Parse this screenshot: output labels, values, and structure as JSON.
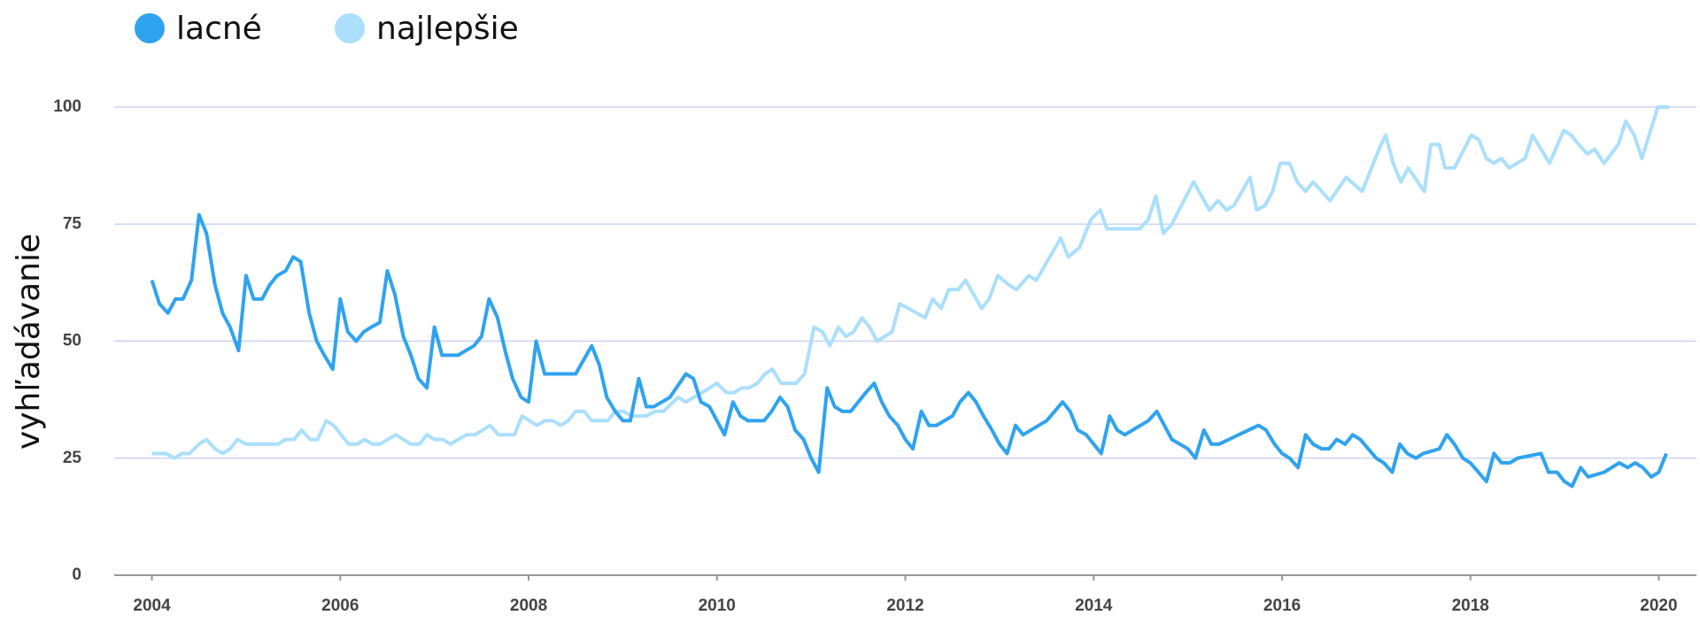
{
  "chart_data": {
    "type": "line",
    "y_label": "vyhľadávanie",
    "xlim": [
      2003.6,
      2020.4
    ],
    "ylim": [
      0,
      100
    ],
    "xticks": [
      2004,
      2006,
      2008,
      2010,
      2012,
      2014,
      2016,
      2018,
      2020
    ],
    "yticks": [
      0,
      25,
      50,
      75,
      100
    ],
    "grid": true,
    "legend": "top-left",
    "series": [
      {
        "name": "lacné",
        "color": "#2fa3ef",
        "x": [
          2004.0,
          2004.08,
          2004.17,
          2004.25,
          2004.33,
          2004.42,
          2004.5,
          2004.58,
          2004.67,
          2004.75,
          2004.83,
          2004.92,
          2005.0,
          2005.08,
          2005.17,
          2005.25,
          2005.33,
          2005.42,
          2005.5,
          2005.58,
          2005.67,
          2005.75,
          2005.83,
          2005.92,
          2006.0,
          2006.08,
          2006.17,
          2006.25,
          2006.33,
          2006.42,
          2006.5,
          2006.58,
          2006.67,
          2006.75,
          2006.83,
          2006.92,
          2007.0,
          2007.08,
          2007.25,
          2007.42,
          2007.5,
          2007.58,
          2007.67,
          2007.75,
          2007.83,
          2007.92,
          2008.0,
          2008.08,
          2008.17,
          2008.5,
          2008.67,
          2008.75,
          2008.83,
          2008.92,
          2009.0,
          2009.08,
          2009.17,
          2009.25,
          2009.33,
          2009.5,
          2009.67,
          2009.75,
          2009.83,
          2009.92,
          2010.0,
          2010.08,
          2010.17,
          2010.25,
          2010.33,
          2010.5,
          2010.58,
          2010.67,
          2010.75,
          2010.83,
          2010.92,
          2011.0,
          2011.08,
          2011.17,
          2011.25,
          2011.33,
          2011.42,
          2011.58,
          2011.67,
          2011.75,
          2011.83,
          2011.92,
          2012.0,
          2012.08,
          2012.17,
          2012.25,
          2012.33,
          2012.5,
          2012.58,
          2012.67,
          2012.75,
          2012.83,
          2012.92,
          2013.0,
          2013.08,
          2013.17,
          2013.25,
          2013.5,
          2013.67,
          2013.75,
          2013.83,
          2013.92,
          2014.08,
          2014.17,
          2014.25,
          2014.33,
          2014.58,
          2014.67,
          2014.75,
          2014.83,
          2015.0,
          2015.08,
          2015.17,
          2015.25,
          2015.33,
          2015.75,
          2015.83,
          2015.92,
          2016.0,
          2016.08,
          2016.17,
          2016.25,
          2016.33,
          2016.42,
          2016.5,
          2016.58,
          2016.67,
          2016.75,
          2016.83,
          2017.0,
          2017.08,
          2017.17,
          2017.25,
          2017.33,
          2017.42,
          2017.5,
          2017.67,
          2017.75,
          2017.83,
          2017.92,
          2018.0,
          2018.17,
          2018.25,
          2018.33,
          2018.42,
          2018.5,
          2018.75,
          2018.83,
          2018.92,
          2019.0,
          2019.08,
          2019.17,
          2019.25,
          2019.42,
          2019.58,
          2019.67,
          2019.75,
          2019.83,
          2019.92,
          2020.0,
          2020.08
        ],
        "values": [
          63,
          58,
          56,
          59,
          59,
          63,
          77,
          73,
          62,
          56,
          53,
          48,
          64,
          59,
          59,
          62,
          64,
          65,
          68,
          67,
          56,
          50,
          47,
          44,
          59,
          52,
          50,
          52,
          53,
          54,
          65,
          60,
          51,
          47,
          42,
          40,
          53,
          47,
          47,
          49,
          51,
          59,
          55,
          48,
          42,
          38,
          37,
          50,
          43,
          43,
          49,
          45,
          38,
          35,
          33,
          33,
          42,
          36,
          36,
          38,
          43,
          42,
          37,
          36,
          33,
          30,
          37,
          34,
          33,
          33,
          35,
          38,
          36,
          31,
          29,
          25,
          22,
          40,
          36,
          35,
          35,
          39,
          41,
          37,
          34,
          32,
          29,
          27,
          35,
          32,
          32,
          34,
          37,
          39,
          37,
          34,
          31,
          28,
          26,
          32,
          30,
          33,
          37,
          35,
          31,
          30,
          26,
          34,
          31,
          30,
          33,
          35,
          32,
          29,
          27,
          25,
          31,
          28,
          28,
          32,
          31,
          28,
          26,
          25,
          23,
          30,
          28,
          27,
          27,
          29,
          28,
          30,
          29,
          25,
          24,
          22,
          28,
          26,
          25,
          26,
          27,
          30,
          28,
          25,
          24,
          20,
          26,
          24,
          24,
          25,
          26,
          22,
          22,
          20,
          19,
          23,
          21,
          22,
          24,
          23,
          24,
          23,
          21,
          22,
          26
        ]
      },
      {
        "name": "najlepšie",
        "color": "#abdffc",
        "x": [
          2004.0,
          2004.15,
          2004.24,
          2004.32,
          2004.4,
          2004.5,
          2004.58,
          2004.67,
          2004.75,
          2004.83,
          2004.91,
          2005.0,
          2005.34,
          2005.42,
          2005.51,
          2005.59,
          2005.68,
          2005.76,
          2005.85,
          2005.93,
          2006.09,
          2006.18,
          2006.26,
          2006.34,
          2006.42,
          2006.59,
          2006.67,
          2006.75,
          2006.84,
          2006.92,
          2007.0,
          2007.09,
          2007.17,
          2007.34,
          2007.43,
          2007.59,
          2007.68,
          2007.85,
          2007.93,
          2008.09,
          2008.17,
          2008.26,
          2008.34,
          2008.42,
          2008.5,
          2008.59,
          2008.67,
          2008.84,
          2008.92,
          2009.01,
          2009.09,
          2009.25,
          2009.34,
          2009.43,
          2009.59,
          2009.67,
          2009.84,
          2009.92,
          2010.0,
          2010.1,
          2010.18,
          2010.26,
          2010.34,
          2010.43,
          2010.51,
          2010.59,
          2010.68,
          2010.84,
          2010.93,
          2011.03,
          2011.12,
          2011.2,
          2011.29,
          2011.37,
          2011.45,
          2011.54,
          2011.62,
          2011.7,
          2011.86,
          2011.94,
          2012.21,
          2012.29,
          2012.38,
          2012.46,
          2012.56,
          2012.64,
          2012.81,
          2012.89,
          2012.98,
          2013.1,
          2013.18,
          2013.31,
          2013.39,
          2013.65,
          2013.73,
          2013.85,
          2013.97,
          2014.07,
          2014.14,
          2014.49,
          2014.58,
          2014.66,
          2014.74,
          2014.83,
          2015.06,
          2015.23,
          2015.32,
          2015.41,
          2015.49,
          2015.66,
          2015.73,
          2015.82,
          2015.9,
          2015.98,
          2016.08,
          2016.16,
          2016.25,
          2016.33,
          2016.51,
          2016.68,
          2016.85,
          2017.03,
          2017.1,
          2017.18,
          2017.26,
          2017.34,
          2017.51,
          2017.58,
          2017.67,
          2017.73,
          2017.83,
          2018.01,
          2018.09,
          2018.17,
          2018.25,
          2018.33,
          2018.41,
          2018.58,
          2018.66,
          2018.84,
          2018.99,
          2019.07,
          2019.15,
          2019.24,
          2019.32,
          2019.42,
          2019.57,
          2019.65,
          2019.74,
          2019.82,
          2019.99,
          2020.11
        ],
        "values": [
          26,
          26,
          25,
          26,
          26,
          28,
          29,
          27,
          26,
          27,
          29,
          28,
          28,
          29,
          29,
          31,
          29,
          29,
          33,
          32,
          28,
          28,
          29,
          28,
          28,
          30,
          29,
          28,
          28,
          30,
          29,
          29,
          28,
          30,
          30,
          32,
          30,
          30,
          34,
          32,
          33,
          33,
          32,
          33,
          35,
          35,
          33,
          33,
          35,
          35,
          34,
          34,
          35,
          35,
          38,
          37,
          39,
          40,
          41,
          39,
          39,
          40,
          40,
          41,
          43,
          44,
          41,
          41,
          43,
          53,
          52,
          49,
          53,
          51,
          52,
          55,
          53,
          50,
          52,
          58,
          55,
          59,
          57,
          61,
          61,
          63,
          57,
          59,
          64,
          62,
          61,
          64,
          63,
          72,
          68,
          70,
          76,
          78,
          74,
          74,
          76,
          81,
          73,
          75,
          84,
          78,
          80,
          78,
          79,
          85,
          78,
          79,
          82,
          88,
          88,
          84,
          82,
          84,
          80,
          85,
          82,
          91,
          94,
          88,
          84,
          87,
          82,
          92,
          92,
          87,
          87,
          94,
          93,
          89,
          88,
          89,
          87,
          89,
          94,
          88,
          95,
          94,
          92,
          90,
          91,
          88,
          92,
          97,
          94,
          89,
          100,
          100
        ]
      }
    ]
  }
}
